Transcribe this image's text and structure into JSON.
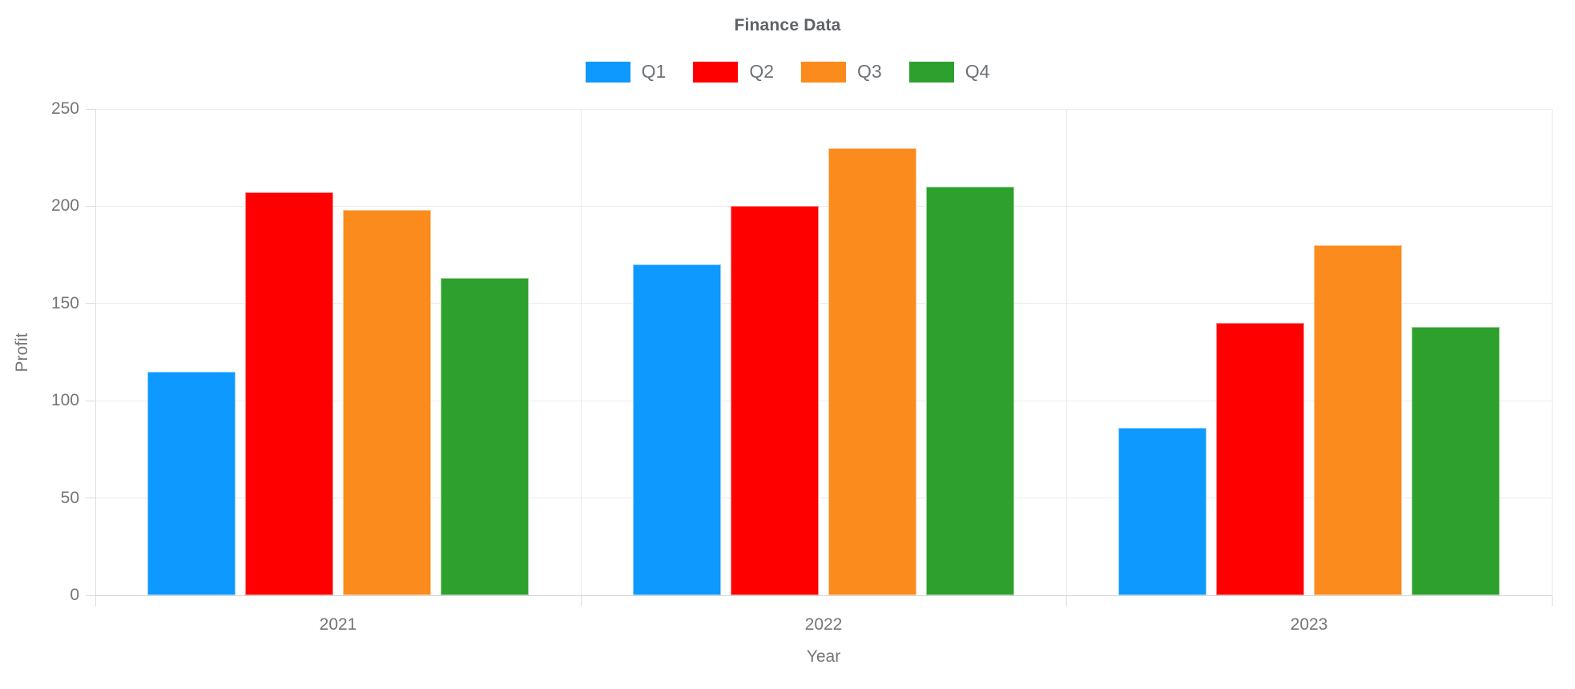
{
  "chart_data": {
    "type": "bar",
    "title": "Finance Data",
    "xlabel": "Year",
    "ylabel": "Profit",
    "categories": [
      "2021",
      "2022",
      "2023"
    ],
    "series": [
      {
        "name": "Q1",
        "color": "#0d99ff",
        "values": [
          115,
          170,
          86
        ]
      },
      {
        "name": "Q2",
        "color": "#ff0000",
        "values": [
          207,
          200,
          140
        ]
      },
      {
        "name": "Q3",
        "color": "#fb8b1d",
        "values": [
          198,
          230,
          180
        ]
      },
      {
        "name": "Q4",
        "color": "#2da02d",
        "values": [
          163,
          210,
          138
        ]
      }
    ],
    "ylim": [
      0,
      250
    ],
    "yticks": [
      0,
      50,
      100,
      150,
      200,
      250
    ],
    "grid": true,
    "legend_position": "top"
  }
}
